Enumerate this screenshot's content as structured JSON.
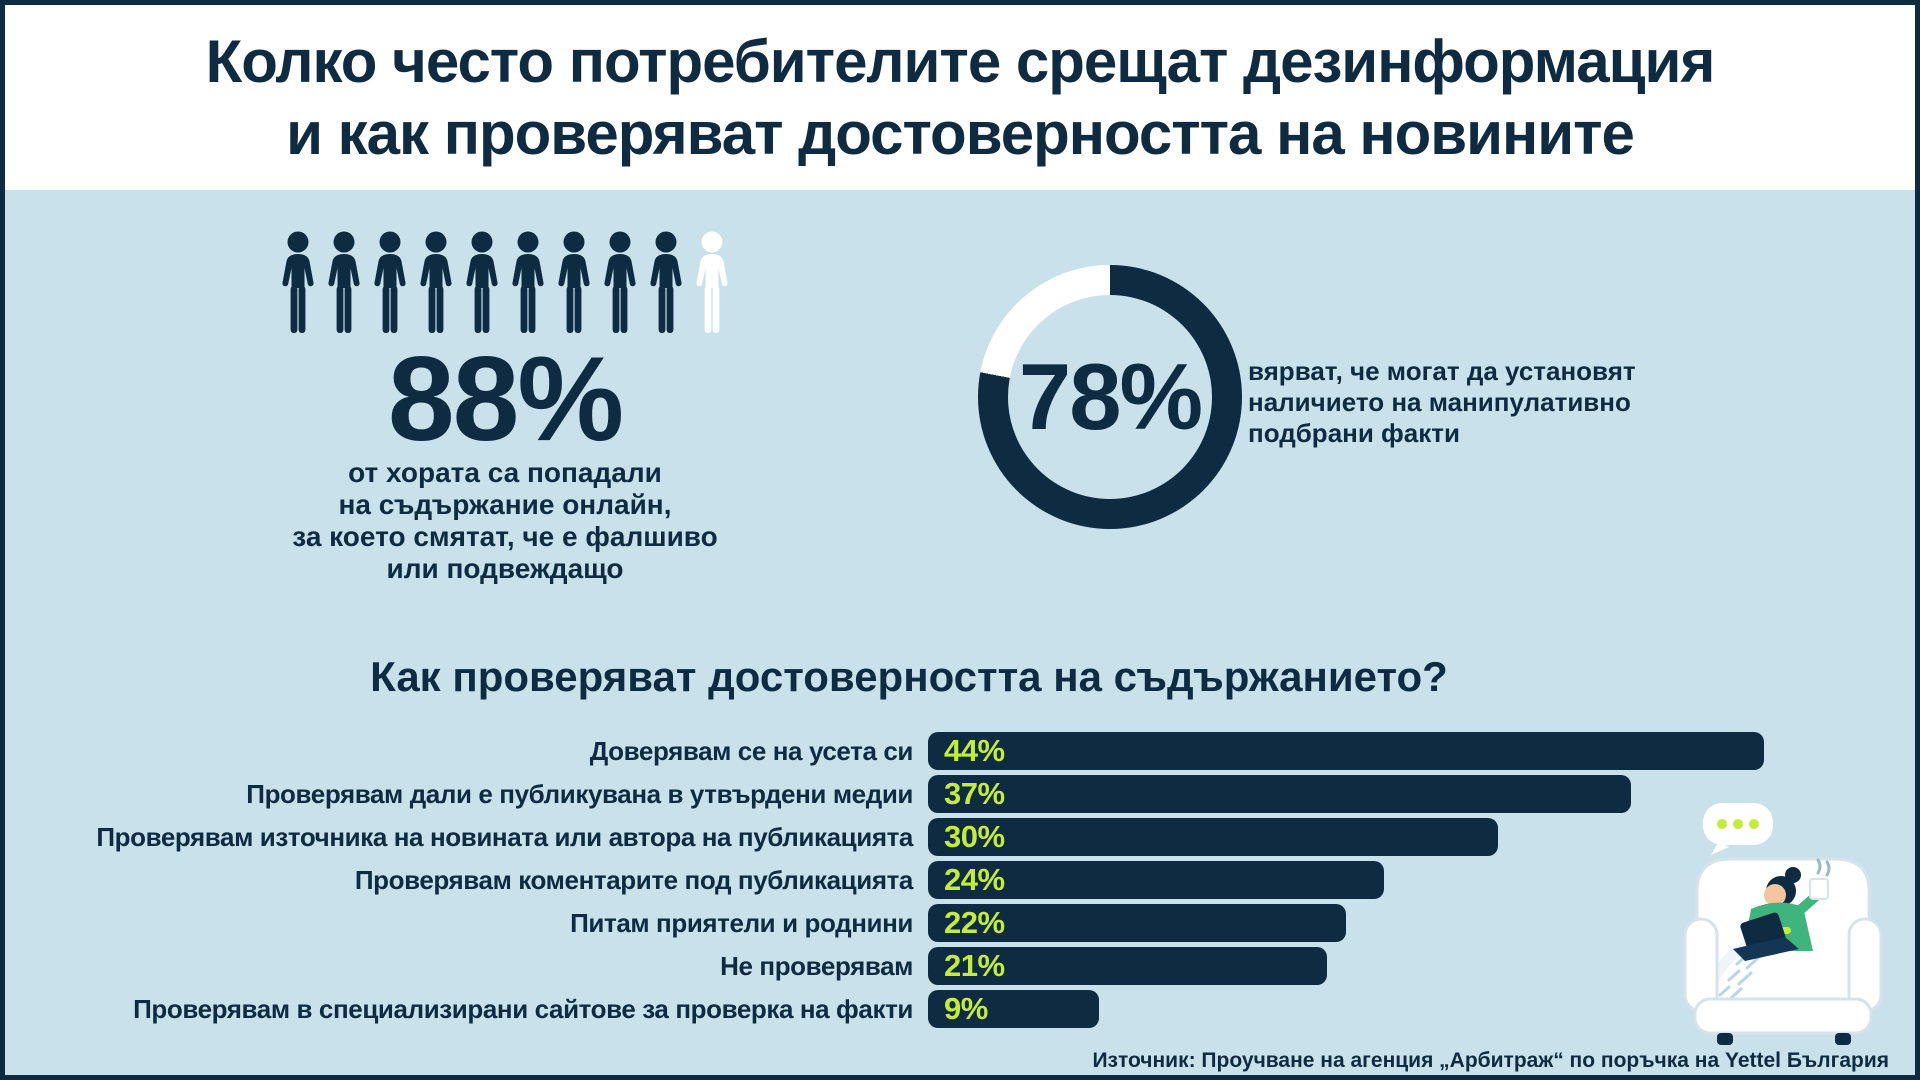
{
  "colors": {
    "navy": "#0e2b41",
    "light_blue": "#c8e1eb",
    "lime": "#c4ec3b",
    "white": "#ffffff",
    "illustration_green": "#3eb57d"
  },
  "title": {
    "line1": "Колко често потребителите срещат дезинформация",
    "line2": "и как проверяват достоверността на новините"
  },
  "people_stat": {
    "value": "88%",
    "total_icons": 10,
    "filled_icons": 9,
    "lines": [
      "от хората са попадали",
      "на съдържание онлайн,",
      "за което смятат, че е фалшиво",
      "или подвеждащо"
    ]
  },
  "donut_stat": {
    "value": "78%",
    "percent": 78,
    "lines": [
      "вярват, че могат да установят",
      "наличието на манипулативно",
      "подбрани факти"
    ]
  },
  "bar_section": {
    "heading": "Как проверяват достоверността на съдържанието?"
  },
  "source": "Източник: Проучване на агенция „Арбитраж“ по поръчка на Yettel България",
  "chart_data": [
    {
      "type": "bar",
      "orientation": "horizontal",
      "title": "Как проверяват достоверността на съдържанието?",
      "unit": "%",
      "categories": [
        "Доверявам се на усета си",
        "Проверявам дали е публикувана в утвърдени медии",
        "Проверявам източника на новината или автора на публикацията",
        "Проверявам коментарите под публикацията",
        "Питам приятели и роднини",
        "Не проверявам",
        "Проверявам в специализирани сайтове за проверка на факти"
      ],
      "values": [
        44,
        37,
        30,
        24,
        22,
        21,
        9
      ],
      "xlim": [
        0,
        50
      ],
      "bar_color": "#0e2b41",
      "value_label_color": "#c4ec3b",
      "grid": false,
      "legend": false
    },
    {
      "type": "pie",
      "donut": true,
      "center_label": "78%",
      "values": [
        78,
        22
      ],
      "colors": [
        "#0e2b41",
        "#ffffff"
      ],
      "annotation": "вярват, че могат да установят наличието на манипулативно подбрани факти"
    },
    {
      "type": "pictogram",
      "value": 88,
      "unit": "%",
      "total_icons": 10,
      "filled_icons": 9,
      "annotation": "от хората са попадали на съдържание онлайн, за което смятат, че е фалшиво или подвеждащо"
    }
  ]
}
